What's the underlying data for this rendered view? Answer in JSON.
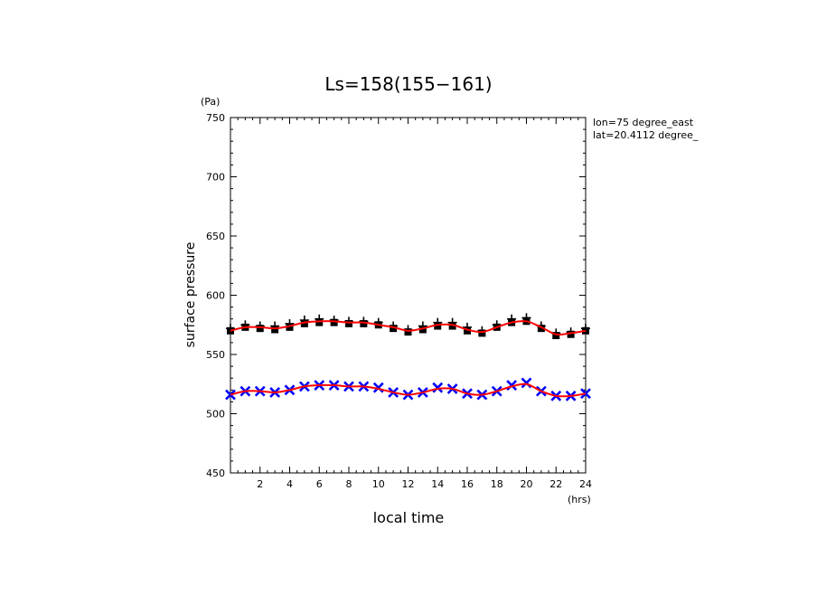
{
  "chart_data": {
    "type": "scatter",
    "title": "Ls=158(155−161)",
    "xlabel": "local time",
    "ylabel": "surface pressure",
    "x_unit": "(hrs)",
    "y_unit": "(Pa)",
    "xlim": [
      0,
      24
    ],
    "ylim": [
      450,
      750
    ],
    "x_ticks": [
      2,
      4,
      6,
      8,
      10,
      12,
      14,
      16,
      18,
      20,
      22,
      24
    ],
    "y_ticks": [
      450,
      500,
      550,
      600,
      650,
      700,
      750
    ],
    "grid": false,
    "annotations": [
      "lon=75 degree_east",
      "lat=20.4112 degree_"
    ],
    "series": [
      {
        "marker": "square",
        "color": "#000000",
        "x": [
          0,
          1,
          2,
          3,
          4,
          5,
          6,
          7,
          8,
          9,
          10,
          11,
          12,
          13,
          14,
          15,
          16,
          17,
          18,
          19,
          20,
          21,
          22,
          23,
          24
        ],
        "y": [
          570,
          573,
          572,
          571,
          573,
          576,
          577,
          577,
          576,
          576,
          575,
          572,
          569,
          571,
          574,
          574,
          570,
          568,
          573,
          577,
          578,
          572,
          566,
          567,
          570
        ]
      },
      {
        "marker": "plus",
        "color": "#000000",
        "x": [
          0,
          1,
          2,
          3,
          4,
          5,
          6,
          7,
          8,
          9,
          10,
          11,
          12,
          13,
          14,
          15,
          16,
          17,
          18,
          19,
          20,
          21,
          22,
          23,
          24
        ],
        "y": [
          572,
          575,
          574,
          574,
          576,
          579,
          580,
          579,
          578,
          578,
          577,
          574,
          571,
          574,
          577,
          577,
          573,
          570,
          575,
          580,
          581,
          574,
          568,
          569,
          572
        ]
      },
      {
        "marker": "x",
        "color": "#0000ff",
        "x": [
          0,
          1,
          2,
          3,
          4,
          5,
          6,
          7,
          8,
          9,
          10,
          11,
          12,
          13,
          14,
          15,
          16,
          17,
          18,
          19,
          20,
          21,
          22,
          23,
          24
        ],
        "y": [
          516,
          519,
          519,
          518,
          520,
          523,
          524,
          524,
          523,
          523,
          522,
          518,
          516,
          518,
          522,
          521,
          517,
          516,
          519,
          524,
          526,
          519,
          515,
          515,
          517
        ]
      },
      {
        "marker": "line",
        "color": "#ff0000",
        "x": [
          0,
          1,
          2,
          3,
          4,
          5,
          6,
          7,
          8,
          9,
          10,
          11,
          12,
          13,
          14,
          15,
          16,
          17,
          18,
          19,
          20,
          21,
          22,
          23,
          24
        ],
        "y": [
          570,
          573,
          573,
          572,
          574,
          577,
          578,
          578,
          577,
          577,
          575,
          573,
          570,
          572,
          575,
          575,
          571,
          569,
          573,
          577,
          578,
          573,
          567,
          568,
          570
        ]
      },
      {
        "marker": "line",
        "color": "#ff0000",
        "x": [
          0,
          1,
          2,
          3,
          4,
          5,
          6,
          7,
          8,
          9,
          10,
          11,
          12,
          13,
          14,
          15,
          16,
          17,
          18,
          19,
          20,
          21,
          22,
          23,
          24
        ],
        "y": [
          516,
          519,
          519,
          518,
          520,
          523,
          524,
          524,
          523,
          523,
          521,
          518,
          516,
          518,
          521,
          521,
          517,
          516,
          519,
          523,
          525,
          519,
          515,
          515,
          517
        ]
      }
    ]
  }
}
